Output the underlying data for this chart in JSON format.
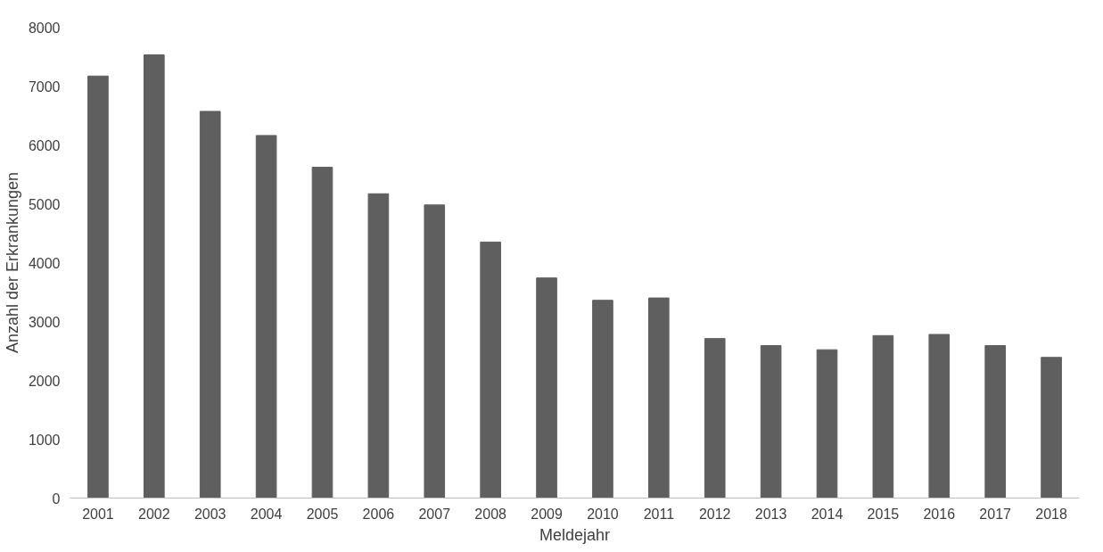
{
  "chart_data": {
    "type": "bar",
    "xlabel": "Meldejahr",
    "ylabel": "Anzahl der Erkrankungen",
    "categories": [
      "2001",
      "2002",
      "2003",
      "2004",
      "2005",
      "2006",
      "2007",
      "2008",
      "2009",
      "2010",
      "2011",
      "2012",
      "2013",
      "2014",
      "2015",
      "2016",
      "2017",
      "2018"
    ],
    "values": [
      7170,
      7530,
      6570,
      6160,
      5620,
      5170,
      4980,
      4350,
      3740,
      3360,
      3400,
      2710,
      2590,
      2520,
      2760,
      2780,
      2590,
      2390
    ],
    "color": "#5f5f5f",
    "ylim": [
      0,
      8000
    ],
    "yticks": [
      0,
      1000,
      2000,
      3000,
      4000,
      5000,
      6000,
      7000,
      8000
    ],
    "grid": false
  }
}
